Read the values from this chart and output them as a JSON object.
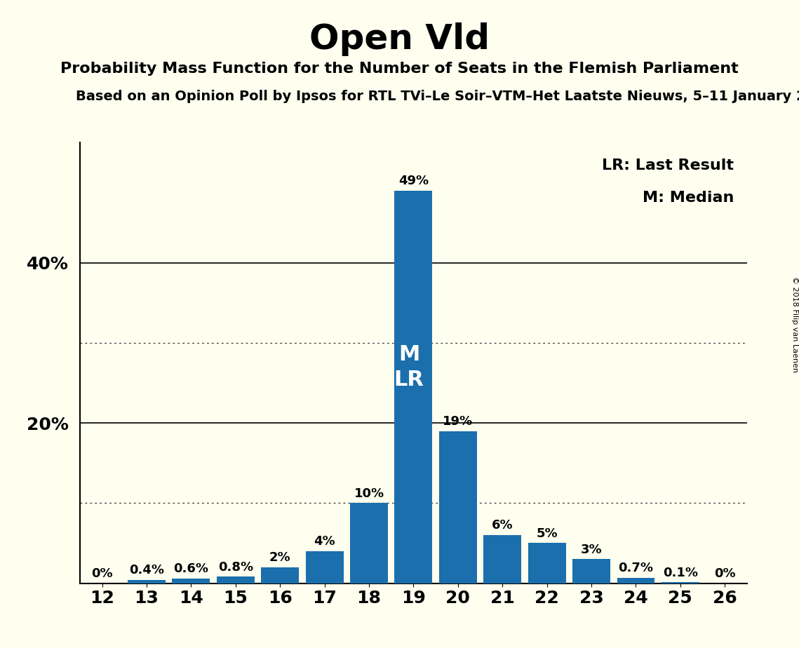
{
  "title": "Open Vld",
  "subtitle": "Probability Mass Function for the Number of Seats in the Flemish Parliament",
  "subtitle2": "Based on an Opinion Poll by Ipsos for RTL TVi–Le Soir–VTM–Het Laatste Nieuws, 5–11 January 2",
  "copyright": "© 2018 Filip van Laenen",
  "seats": [
    12,
    13,
    14,
    15,
    16,
    17,
    18,
    19,
    20,
    21,
    22,
    23,
    24,
    25,
    26
  ],
  "probabilities": [
    0.0,
    0.4,
    0.6,
    0.8,
    2.0,
    4.0,
    10.0,
    49.0,
    19.0,
    6.0,
    5.0,
    3.0,
    0.7,
    0.1,
    0.0
  ],
  "labels": [
    "0%",
    "0.4%",
    "0.6%",
    "0.8%",
    "2%",
    "4%",
    "10%",
    "49%",
    "19%",
    "6%",
    "5%",
    "3%",
    "0.7%",
    "0.1%",
    "0%"
  ],
  "bar_color": "#1b6fac",
  "background_color": "#fffff0",
  "median_seat": 19,
  "last_result_seat": 19,
  "median_label": "M",
  "last_result_label": "LR",
  "legend_lr": "LR: Last Result",
  "legend_m": "M: Median",
  "ylim": [
    0,
    55
  ],
  "solid_gridlines": [
    20,
    40
  ],
  "dotted_gridlines": [
    10,
    30
  ],
  "ytick_labels": [
    "20%",
    "40%"
  ],
  "ytick_values": [
    20,
    40
  ],
  "bar_label_fontsize": 13,
  "title_fontsize": 36,
  "subtitle_fontsize": 16,
  "subtitle2_fontsize": 14,
  "tick_fontsize": 18,
  "legend_fontsize": 16,
  "ml_fontsize": 22
}
